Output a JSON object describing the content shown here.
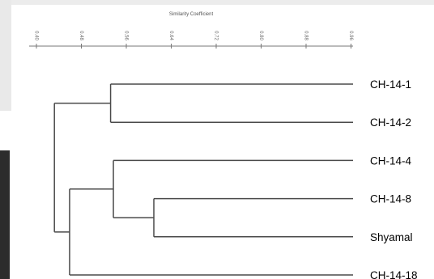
{
  "axis": {
    "title": "Similarity Coefficient",
    "ticks": [
      "0.40",
      "0.48",
      "0.56",
      "0.64",
      "0.72",
      "0.80",
      "0.88",
      "0.96"
    ],
    "tick_values": [
      0.4,
      0.48,
      0.56,
      0.64,
      0.72,
      0.8,
      0.88,
      0.96
    ],
    "range": [
      0.4,
      1.0
    ]
  },
  "leaves": [
    "CH-14-1",
    "CH-14-2",
    "CH-14-4",
    "CH-14-8",
    "Shyamal",
    "CH-14-18"
  ],
  "merges": [
    {
      "id": "A",
      "children": [
        "CH-14-1",
        "CH-14-2"
      ],
      "similarity": 0.532
    },
    {
      "id": "B",
      "children": [
        "CH-14-8",
        "Shyamal"
      ],
      "similarity": 0.609
    },
    {
      "id": "C",
      "children": [
        "CH-14-4",
        "B"
      ],
      "similarity": 0.537
    },
    {
      "id": "D",
      "children": [
        "C",
        "CH-14-18"
      ],
      "similarity": 0.459
    },
    {
      "id": "E",
      "children": [
        "A",
        "D"
      ],
      "similarity": 0.432
    }
  ],
  "colors": {
    "line": "#4a4a4a",
    "text": "#000000"
  }
}
